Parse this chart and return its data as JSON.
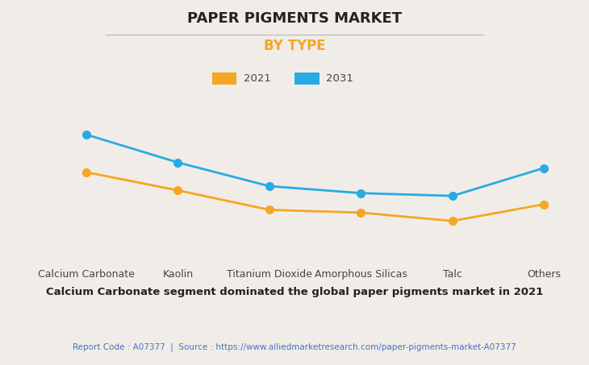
{
  "title": "PAPER PIGMENTS MARKET",
  "subtitle": "BY TYPE",
  "categories": [
    "Calcium Carbonate",
    "Kaolin",
    "Titanium Dioxide",
    "Amorphous Silicas",
    "Talc",
    "Others"
  ],
  "series_2021": [
    6.5,
    5.2,
    3.8,
    3.6,
    3.0,
    4.2
  ],
  "series_2031": [
    9.2,
    7.2,
    5.5,
    5.0,
    4.8,
    6.8
  ],
  "color_2021": "#F5A623",
  "color_2031": "#29ABE2",
  "legend_labels": [
    "2021",
    "2031"
  ],
  "background_color": "#F0EDE8",
  "grid_color": "#D5D2CB",
  "title_fontsize": 13,
  "subtitle_fontsize": 12,
  "subtitle_color": "#F5A623",
  "annotation": "Calcium Carbonate segment dominated the global paper pigments market in 2021",
  "footer": "Report Code : A07377  |  Source : https://www.alliedmarketresearch.com/paper-pigments-market-A07377",
  "footer_color": "#4472C4",
  "ylim": [
    0,
    11
  ],
  "marker_size": 7
}
